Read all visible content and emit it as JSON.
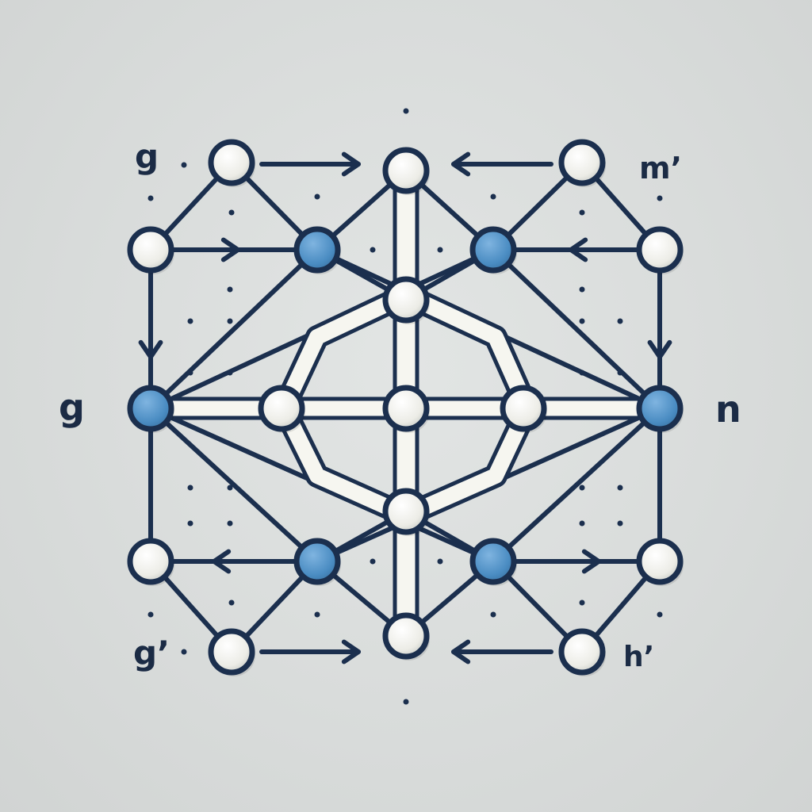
{
  "colors": {
    "background": "#d9dcdb",
    "stroke": "#1b2f4e",
    "node_fill": "#f3f3ee",
    "accent_node_fill": "#4d90c6",
    "ring_fill": "#f6f6f0",
    "dot": "#1b2f4e"
  },
  "labels": {
    "top_left": "g",
    "top_right": "m’",
    "mid_left": "g",
    "mid_right": "n",
    "bottom_left": "g’",
    "bottom_right": "h’"
  },
  "diagram": {
    "node_types": [
      "plain",
      "accent"
    ],
    "accent_node_ids": [
      "l1",
      "c1",
      "c2",
      "r2",
      "c5",
      "c6"
    ],
    "edge_style": "solid",
    "arrow_style": "open-head"
  }
}
